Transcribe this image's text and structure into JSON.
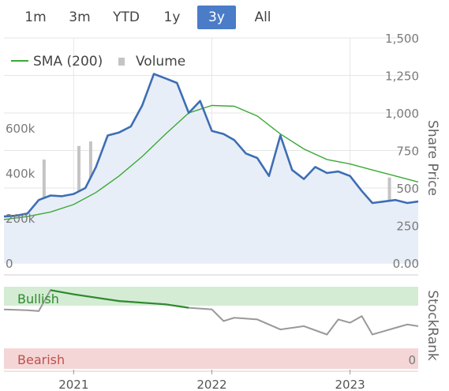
{
  "range_selector": {
    "buttons": [
      {
        "label": "1m",
        "active": false
      },
      {
        "label": "3m",
        "active": false
      },
      {
        "label": "YTD",
        "active": false
      },
      {
        "label": "1y",
        "active": false
      },
      {
        "label": "3y",
        "active": true
      },
      {
        "label": "All",
        "active": false
      }
    ]
  },
  "colors": {
    "price_line": "#3d6eb5",
    "price_fill": "#e8eef7",
    "sma_line": "#3aaa35",
    "volume_bar": "#c4c4c4",
    "bullish_band": "#d4ecd4",
    "bearish_band": "#f4d6d6",
    "bullish_text": "#2e8b2e",
    "bearish_text": "#c0504d",
    "stockrank_line": "#999999",
    "stockrank_bull_line": "#2e8b2e",
    "active_button": "#4a7cc7"
  },
  "chart_data": [
    {
      "type": "line",
      "legend": [
        {
          "label": "SMA (200)",
          "marker": "line"
        },
        {
          "label": "Volume",
          "marker": "square"
        }
      ],
      "ylabel_right": "Share Price",
      "yticks_right": [
        "0.00",
        "250",
        "500",
        "750",
        "1,000",
        "1,250",
        "1,500"
      ],
      "yticks_left": [
        "0",
        "200k",
        "400k",
        "600k"
      ],
      "ylim_price": [
        0,
        1500
      ],
      "ylim_volume": [
        0,
        1000000
      ],
      "xlim": [
        "2020-07-01",
        "2023-06-30"
      ],
      "grid": true,
      "series": [
        {
          "name": "Share Price",
          "x": [
            "2020-07-01",
            "2020-08-01",
            "2020-09-01",
            "2020-10-01",
            "2020-11-01",
            "2020-12-01",
            "2021-01-01",
            "2021-02-01",
            "2021-03-01",
            "2021-04-01",
            "2021-05-01",
            "2021-06-01",
            "2021-07-01",
            "2021-08-01",
            "2021-09-01",
            "2021-10-01",
            "2021-11-01",
            "2021-12-01",
            "2022-01-01",
            "2022-02-01",
            "2022-03-01",
            "2022-04-01",
            "2022-05-01",
            "2022-06-01",
            "2022-07-01",
            "2022-08-01",
            "2022-09-01",
            "2022-10-01",
            "2022-11-01",
            "2022-12-01",
            "2023-01-01",
            "2023-02-01",
            "2023-03-01",
            "2023-04-01",
            "2023-05-01",
            "2023-06-01",
            "2023-06-30"
          ],
          "values": [
            310,
            315,
            330,
            420,
            450,
            445,
            460,
            500,
            640,
            850,
            870,
            910,
            1050,
            1260,
            1230,
            1200,
            1000,
            1080,
            880,
            860,
            820,
            730,
            700,
            580,
            850,
            620,
            560,
            640,
            600,
            610,
            580,
            480,
            400,
            410,
            420,
            400,
            410
          ]
        },
        {
          "name": "SMA (200)",
          "x": [
            "2020-07-01",
            "2020-09-01",
            "2020-11-01",
            "2021-01-01",
            "2021-03-01",
            "2021-05-01",
            "2021-07-01",
            "2021-09-01",
            "2021-11-01",
            "2022-01-01",
            "2022-03-01",
            "2022-05-01",
            "2022-07-01",
            "2022-09-01",
            "2022-11-01",
            "2023-01-01",
            "2023-03-01",
            "2023-05-01",
            "2023-06-30"
          ],
          "values": [
            290,
            310,
            340,
            390,
            470,
            580,
            710,
            860,
            1000,
            1050,
            1045,
            980,
            860,
            760,
            690,
            660,
            620,
            580,
            540
          ]
        },
        {
          "name": "Volume",
          "x": [
            "2020-07",
            "2020-08",
            "2020-09",
            "2020-10",
            "2020-11",
            "2020-12",
            "2021-01",
            "2021-02",
            "2021-03",
            "2021-04",
            "2021-05",
            "2021-06",
            "2021-07",
            "2021-08",
            "2021-09",
            "2021-10",
            "2021-11",
            "2021-12",
            "2022-01",
            "2022-02",
            "2022-03",
            "2022-04",
            "2022-05",
            "2022-06",
            "2022-07",
            "2022-08",
            "2022-09",
            "2022-10",
            "2022-11",
            "2022-12",
            "2023-01",
            "2023-02",
            "2023-03",
            "2023-04",
            "2023-05",
            "2023-06"
          ],
          "values": [
            120000,
            150000,
            160000,
            460000,
            180000,
            140000,
            520000,
            540000,
            300000,
            220000,
            250000,
            200000,
            180000,
            230000,
            210000,
            240000,
            260000,
            200000,
            280000,
            310000,
            220000,
            270000,
            200000,
            190000,
            210000,
            170000,
            180000,
            220000,
            190000,
            160000,
            180000,
            200000,
            230000,
            380000,
            260000,
            150000
          ]
        }
      ]
    },
    {
      "type": "line",
      "ylabel_right": "StockRank",
      "band_labels": [
        "Bullish",
        "Bearish"
      ],
      "yticks_right": [
        "0"
      ],
      "ylim": [
        0,
        100
      ],
      "xticks": [
        "2021",
        "2022",
        "2023"
      ],
      "series": [
        {
          "name": "StockRank",
          "x": [
            "2020-07-01",
            "2020-09-01",
            "2020-10-01",
            "2020-11-01",
            "2021-01-01",
            "2021-03-01",
            "2021-05-01",
            "2021-07-01",
            "2021-09-01",
            "2021-11-01",
            "2022-01-01",
            "2022-02-01",
            "2022-03-01",
            "2022-05-01",
            "2022-07-01",
            "2022-08-01",
            "2022-09-01",
            "2022-11-01",
            "2022-12-01",
            "2023-01-01",
            "2023-02-01",
            "2023-03-01",
            "2023-04-01",
            "2023-05-01",
            "2023-06-01",
            "2023-06-30"
          ],
          "values": [
            72,
            71,
            70,
            95,
            90,
            86,
            82,
            80,
            78,
            74,
            72,
            58,
            62,
            60,
            48,
            50,
            52,
            42,
            60,
            56,
            64,
            42,
            46,
            50,
            54,
            52
          ]
        }
      ]
    }
  ]
}
